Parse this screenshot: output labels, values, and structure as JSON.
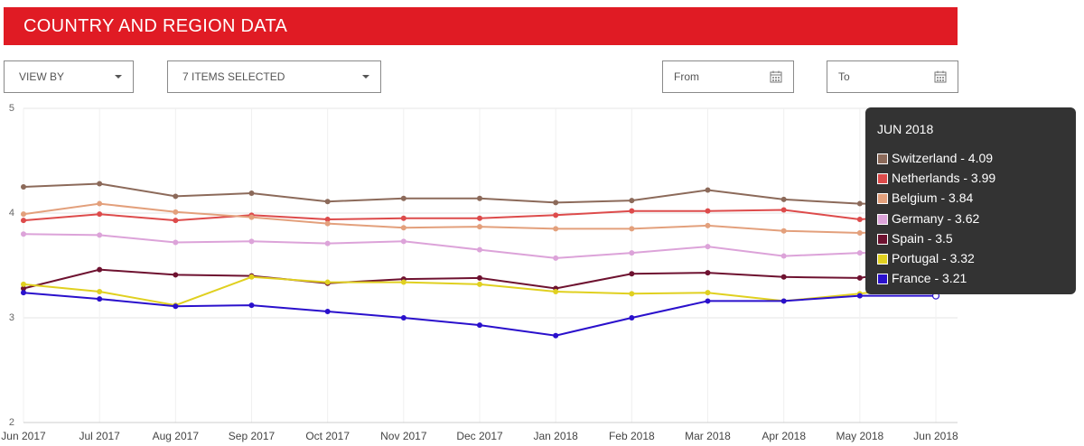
{
  "header": {
    "title": "COUNTRY AND REGION DATA"
  },
  "controls": {
    "view_by": "VIEW BY",
    "items_selected": "7 ITEMS SELECTED",
    "from": "From",
    "to": "To"
  },
  "chart_data": {
    "type": "line",
    "categories": [
      "Jun 2017",
      "Jul 2017",
      "Aug 2017",
      "Sep 2017",
      "Oct 2017",
      "Nov 2017",
      "Dec 2017",
      "Jan 2018",
      "Feb 2018",
      "Mar 2018",
      "Apr 2018",
      "May 2018",
      "Jun 2018"
    ],
    "ylim": [
      2,
      5
    ],
    "yticks": [
      "5",
      "4",
      "3",
      "2"
    ],
    "ytick_values": [
      5,
      4,
      3,
      2
    ],
    "grid": true,
    "series": [
      {
        "name": "Switzerland",
        "color": "#8c6a5a",
        "values": [
          4.25,
          4.28,
          4.16,
          4.19,
          4.11,
          4.14,
          4.14,
          4.1,
          4.12,
          4.22,
          4.13,
          4.09,
          4.09
        ]
      },
      {
        "name": "Netherlands",
        "color": "#dd4b4b",
        "values": [
          3.93,
          3.99,
          3.93,
          3.98,
          3.94,
          3.95,
          3.95,
          3.98,
          4.02,
          4.02,
          4.03,
          3.94,
          3.99
        ]
      },
      {
        "name": "Belgium",
        "color": "#e3a07c",
        "values": [
          3.99,
          4.09,
          4.01,
          3.96,
          3.9,
          3.86,
          3.87,
          3.85,
          3.85,
          3.88,
          3.83,
          3.81,
          3.84
        ]
      },
      {
        "name": "Germany",
        "color": "#dca3d9",
        "values": [
          3.8,
          3.79,
          3.72,
          3.73,
          3.71,
          3.73,
          3.65,
          3.57,
          3.62,
          3.68,
          3.59,
          3.62,
          3.62
        ]
      },
      {
        "name": "Spain",
        "color": "#6e1230",
        "values": [
          3.28,
          3.46,
          3.41,
          3.4,
          3.33,
          3.37,
          3.38,
          3.28,
          3.42,
          3.43,
          3.39,
          3.38,
          3.5
        ]
      },
      {
        "name": "Portugal",
        "color": "#e0d020",
        "values": [
          3.32,
          3.25,
          3.12,
          3.39,
          3.34,
          3.34,
          3.32,
          3.25,
          3.23,
          3.24,
          3.16,
          3.23,
          3.32
        ]
      },
      {
        "name": "France",
        "color": "#2a10cc",
        "values": [
          3.24,
          3.18,
          3.11,
          3.12,
          3.06,
          3.0,
          2.93,
          2.83,
          3.0,
          3.16,
          3.16,
          3.21,
          3.21
        ]
      }
    ]
  },
  "tooltip": {
    "title": "JUN 2018",
    "rows": [
      {
        "text": "Switzerland - 4.09",
        "color": "#8c6a5a"
      },
      {
        "text": "Netherlands - 3.99",
        "color": "#dd4b4b"
      },
      {
        "text": "Belgium - 3.84",
        "color": "#e3a07c"
      },
      {
        "text": "Germany - 3.62",
        "color": "#dca3d9"
      },
      {
        "text": "Spain - 3.5",
        "color": "#6e1230"
      },
      {
        "text": "Portugal - 3.32",
        "color": "#e0d020"
      },
      {
        "text": "France - 3.21",
        "color": "#2a10cc"
      }
    ]
  },
  "icons": {
    "calendar": "calendar-icon",
    "dropdown": "chevron-down-icon"
  }
}
